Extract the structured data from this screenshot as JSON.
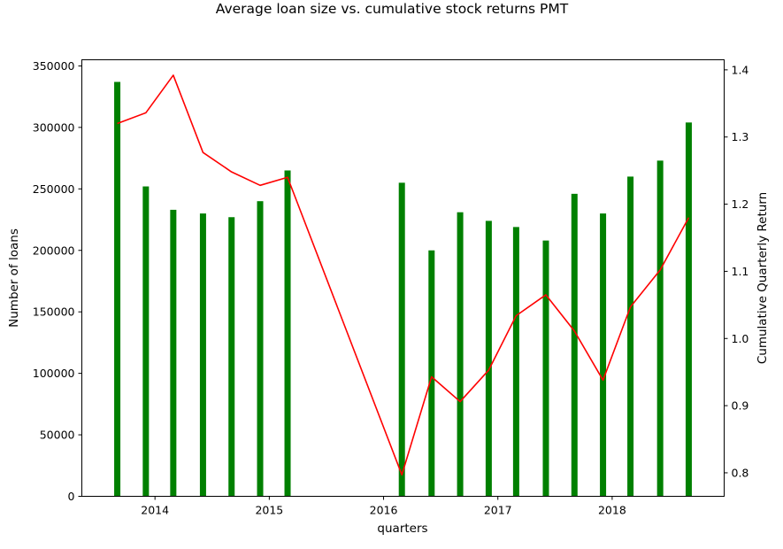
{
  "chart_data": {
    "type": "bar+line",
    "title": "Average loan size vs. cumulative stock returns PMT",
    "xlabel": "quarters",
    "ylabel_left": "Number of loans",
    "ylabel_right": "Cumulative Quarterly Return",
    "x_ticks": [
      2014,
      2015,
      2016,
      2017,
      2018
    ],
    "x_tick_labels": [
      "2014",
      "2015",
      "2016",
      "2017",
      "2018"
    ],
    "xlim": [
      2013.36,
      2018.98
    ],
    "ylim_left": [
      0,
      355000
    ],
    "y_ticks_left": [
      0,
      50000,
      100000,
      150000,
      200000,
      250000,
      300000,
      350000
    ],
    "y_tick_labels_left": [
      "0",
      "50000",
      "100000",
      "150000",
      "200000",
      "250000",
      "300000",
      "350000"
    ],
    "ylim_right": [
      0.765,
      1.415
    ],
    "y_ticks_right": [
      0.8,
      0.9,
      1.0,
      1.1,
      1.2,
      1.3,
      1.4
    ],
    "y_tick_labels_right": [
      "0.8",
      "0.9",
      "1.0",
      "1.1",
      "1.2",
      "1.3",
      "1.4"
    ],
    "grid": false,
    "legend": "none",
    "bar_color": "#008000",
    "line_color": "#ff0000",
    "x": [
      2013.67,
      2013.92,
      2014.16,
      2014.42,
      2014.67,
      2014.92,
      2015.16,
      2016.16,
      2016.42,
      2016.67,
      2016.92,
      2017.16,
      2017.42,
      2017.67,
      2017.92,
      2018.16,
      2018.42,
      2018.67
    ],
    "series": [
      {
        "axis": "left",
        "type": "bar",
        "values": [
          337000,
          252000,
          233000,
          230000,
          227000,
          240000,
          265000,
          255000,
          200000,
          231000,
          224000,
          219000,
          208000,
          246000,
          230000,
          260000,
          273000,
          304000
        ]
      },
      {
        "axis": "right",
        "type": "line",
        "values": [
          1.32,
          1.336,
          1.392,
          1.277,
          1.248,
          1.228,
          1.24,
          0.797,
          0.943,
          0.906,
          0.953,
          1.034,
          1.065,
          1.011,
          0.938,
          1.047,
          1.102,
          1.18
        ]
      }
    ]
  }
}
